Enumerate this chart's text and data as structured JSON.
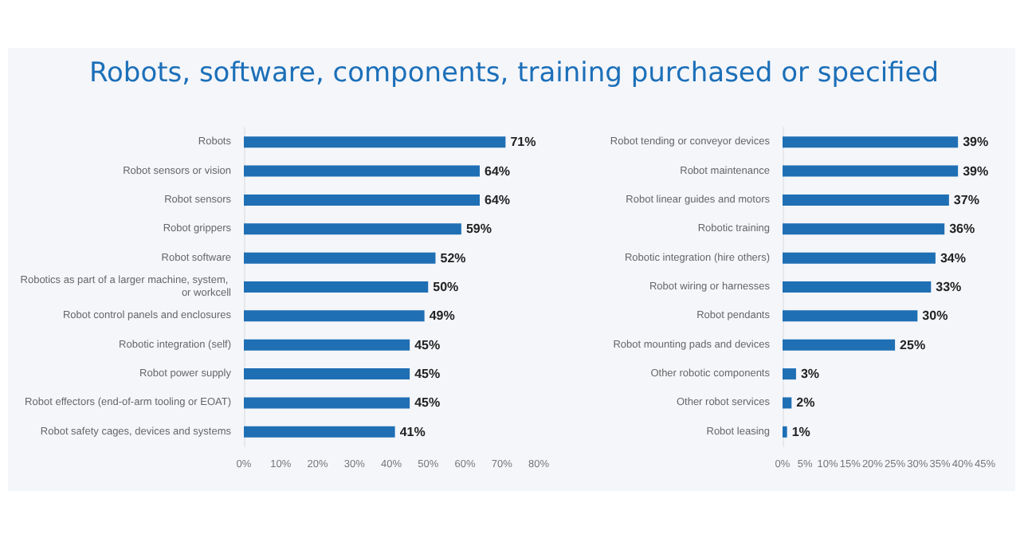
{
  "chart_data": [
    {
      "type": "bar",
      "orientation": "horizontal",
      "title": "Robots, software, components, training purchased or specified",
      "categories": [
        "Robots",
        "Robot sensors or vision",
        "Robot sensors",
        "Robot grippers",
        "Robot software",
        "Robotics as part of a larger machine, system, or workcell",
        "Robot control panels and enclosures",
        "Robotic integration (self)",
        "Robot power supply",
        "Robot effectors (end-of-arm tooling or EOAT)",
        "Robot safety cages, devices and systems"
      ],
      "values": [
        71,
        64,
        64,
        59,
        52,
        50,
        49,
        45,
        45,
        45,
        41
      ],
      "value_labels": [
        "71%",
        "64%",
        "64%",
        "59%",
        "52%",
        "50%",
        "49%",
        "45%",
        "45%",
        "45%",
        "41%"
      ],
      "color": "#1f6fb4",
      "xlim": [
        0,
        80
      ],
      "xticks": [
        {
          "value": 0,
          "label": "0%"
        },
        {
          "value": 10,
          "label": "10%"
        },
        {
          "value": 20,
          "label": "20%"
        },
        {
          "value": 30,
          "label": "30%"
        },
        {
          "value": 40,
          "label": "40%"
        },
        {
          "value": 50,
          "label": "50%"
        },
        {
          "value": 60,
          "label": "60%"
        },
        {
          "value": 70,
          "label": "70%"
        },
        {
          "value": 80,
          "label": "80%"
        }
      ],
      "grid": false
    },
    {
      "type": "bar",
      "orientation": "horizontal",
      "categories": [
        "Robot tending or conveyor devices",
        "Robot maintenance",
        "Robot linear guides and motors",
        "Robotic training",
        "Robotic integration (hire others)",
        "Robot wiring or harnesses",
        "Robot pendants",
        "Robot mounting pads and devices",
        "Other robotic components",
        "Other robot services",
        "Robot leasing"
      ],
      "values": [
        39,
        39,
        37,
        36,
        34,
        33,
        30,
        25,
        3,
        2,
        1
      ],
      "value_labels": [
        "39%",
        "39%",
        "37%",
        "36%",
        "34%",
        "33%",
        "30%",
        "25%",
        "3%",
        "2%",
        "1%"
      ],
      "color": "#1f6fb4",
      "xlim": [
        0,
        45
      ],
      "xticks": [
        {
          "value": 0,
          "label": "0%"
        },
        {
          "value": 5,
          "label": "5%"
        },
        {
          "value": 10,
          "label": "10%"
        },
        {
          "value": 15,
          "label": "15%"
        },
        {
          "value": 20,
          "label": "20%"
        },
        {
          "value": 25,
          "label": "25%"
        },
        {
          "value": 30,
          "label": "30%"
        },
        {
          "value": 35,
          "label": "35%"
        },
        {
          "value": 40,
          "label": "40%"
        },
        {
          "value": 45,
          "label": "45%"
        }
      ],
      "grid": false
    }
  ]
}
